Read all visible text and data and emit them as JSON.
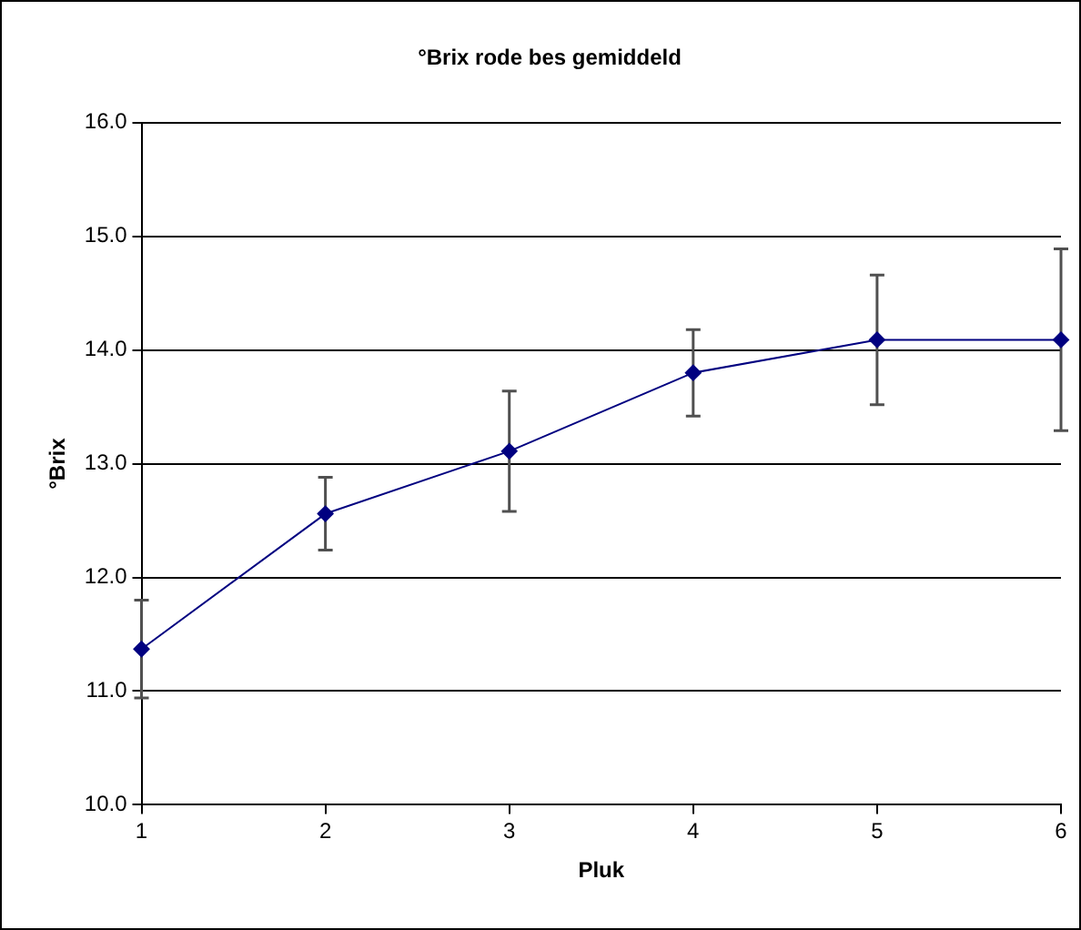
{
  "chart_data": {
    "type": "line",
    "title": "°Brix rode bes gemiddeld",
    "xlabel": "Pluk",
    "ylabel": "°Brix",
    "x": [
      1,
      2,
      3,
      4,
      5,
      6
    ],
    "series": [
      {
        "color": "#000080",
        "values": [
          11.37,
          12.56,
          13.11,
          13.8,
          14.09,
          14.09
        ],
        "errors": [
          0.43,
          0.32,
          0.53,
          0.38,
          0.57,
          0.8
        ]
      }
    ],
    "xlim": [
      1,
      6
    ],
    "xticks": [
      1,
      2,
      3,
      4,
      5,
      6
    ],
    "ylim": [
      10,
      16
    ],
    "yticks": [
      {
        "value": 10,
        "label": "10.0"
      },
      {
        "value": 11,
        "label": "11.0"
      },
      {
        "value": 12,
        "label": "12.0"
      },
      {
        "value": 13,
        "label": "13.0"
      },
      {
        "value": 14,
        "label": "14.0"
      },
      {
        "value": 15,
        "label": "15.0"
      },
      {
        "value": 16,
        "label": "16.0"
      }
    ],
    "grid": "y",
    "marker": "diamond",
    "line_style": "solid",
    "legend": false
  }
}
